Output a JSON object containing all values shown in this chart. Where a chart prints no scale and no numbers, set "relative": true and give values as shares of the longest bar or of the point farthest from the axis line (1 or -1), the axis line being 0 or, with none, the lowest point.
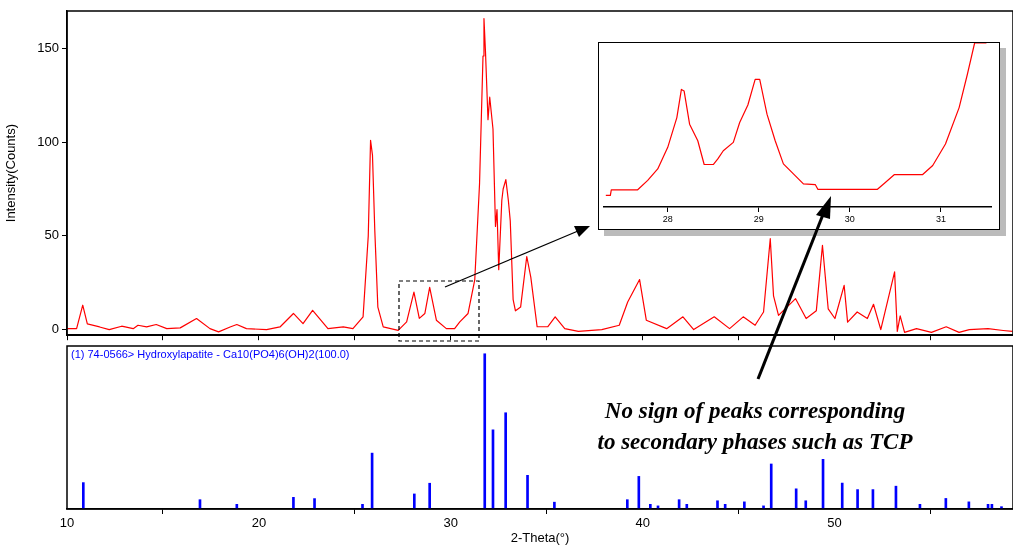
{
  "chart_data": [
    {
      "type": "line",
      "ylabel": "Intensity(Counts)",
      "xlim": [
        10,
        59.3
      ],
      "ylim": [
        -3,
        170
      ],
      "yticks": [
        0,
        50,
        100,
        150
      ],
      "tick_labels": "y",
      "grid": false,
      "marker": "none",
      "line_style": "solid",
      "x": [
        10,
        10.5,
        10.82,
        11.06,
        11.7,
        12.2,
        12.85,
        13.45,
        13.7,
        14.15,
        14.65,
        15.2,
        15.9,
        16.75,
        17.45,
        17.9,
        18.5,
        18.85,
        19.35,
        20.4,
        21.1,
        21.8,
        22.3,
        22.8,
        23.6,
        24.4,
        24.9,
        25.43,
        25.7,
        25.82,
        25.92,
        26.04,
        26.2,
        26.48,
        27.26,
        27.7,
        28.08,
        28.36,
        28.65,
        28.9,
        29.25,
        29.77,
        30.2,
        30.47,
        30.9,
        31.25,
        31.5,
        31.68,
        31.73,
        31.81,
        31.94,
        32.03,
        32.2,
        32.33,
        32.41,
        32.5,
        32.66,
        32.73,
        32.87,
        33.0,
        33.1,
        33.25,
        33.37,
        33.5,
        33.64,
        33.96,
        34.17,
        34.5,
        35.05,
        35.44,
        35.94,
        36.65,
        37.87,
        38.78,
        39.22,
        39.84,
        40.19,
        41.25,
        42.1,
        42.66,
        43.73,
        44.53,
        45.24,
        45.86,
        46.3,
        46.65,
        46.82,
        47.08,
        47.97,
        48.52,
        49.05,
        49.37,
        49.67,
        50.02,
        50.5,
        50.68,
        51.18,
        51.71,
        52.03,
        52.41,
        53.13,
        53.27,
        53.42,
        53.65,
        54.27,
        55.05,
        55.82,
        56.49,
        57.02,
        58.0,
        58.79,
        59.27
      ],
      "series": [
        {
          "color": "#ff0000",
          "values": [
            0.5,
            0.5,
            13,
            3,
            1.4,
            0,
            1.8,
            0.5,
            2.3,
            1.4,
            2.7,
            0.5,
            0.9,
            5.9,
            0.5,
            -1.2,
            1.4,
            2.7,
            0.5,
            0,
            1.4,
            8.6,
            3.2,
            10.3,
            0.5,
            1.4,
            0.5,
            6.8,
            50,
            101,
            93,
            53,
            12,
            1.4,
            -0.4,
            4.1,
            20,
            6,
            8.6,
            22.5,
            5,
            0.5,
            0.5,
            4.1,
            8.6,
            26.5,
            78,
            146,
            166,
            148,
            112,
            124,
            107,
            55,
            64,
            32,
            69,
            75,
            80,
            69,
            58,
            16,
            10,
            11,
            12,
            39,
            28,
            1.5,
            1.5,
            6.8,
            0.5,
            -1,
            0,
            2.3,
            14.7,
            26.7,
            5,
            0.5,
            6.8,
            0,
            6.8,
            0.5,
            6.8,
            2.3,
            9.4,
            48.5,
            18,
            7.6,
            16.5,
            5.9,
            10,
            45,
            11,
            5.9,
            23.6,
            4,
            9.4,
            5.9,
            13.5,
            0,
            30.8,
            -1,
            7.3,
            -1.5,
            0.5,
            -1.5,
            1.5,
            -1.5,
            0,
            0.5,
            -0.5,
            -1
          ]
        }
      ]
    },
    {
      "type": "bar",
      "relative": true,
      "xlabel": "2-Theta(°)",
      "xlim": [
        10,
        59.3
      ],
      "xticks": [
        10,
        20,
        30,
        40,
        50
      ],
      "tick_labels": "x",
      "grid": false,
      "annotations": [
        "No sign of peaks corresponding\nto secondary phases such as TCP"
      ],
      "x": [
        10.85,
        16.93,
        18.85,
        21.8,
        22.9,
        25.4,
        25.9,
        28.1,
        28.9,
        31.77,
        32.2,
        32.86,
        34.0,
        35.4,
        39.2,
        39.8,
        40.4,
        40.8,
        41.9,
        42.3,
        43.9,
        44.3,
        45.3,
        46.3,
        46.7,
        48.0,
        48.5,
        49.4,
        50.4,
        51.2,
        52.0,
        53.2,
        54.45,
        55.8,
        57.0,
        58.0,
        58.2,
        58.7
      ],
      "series": [
        {
          "name": "(1) 74-0566> Hydroxylapatite - Ca10(PO4)6(OH)2(100.0)",
          "color": "#0000ff",
          "values": [
            0.17,
            0.06,
            0.03,
            0.075,
            0.067,
            0.03,
            0.36,
            0.097,
            0.166,
            1,
            0.51,
            0.62,
            0.217,
            0.044,
            0.06,
            0.21,
            0.03,
            0.02,
            0.06,
            0.03,
            0.053,
            0.03,
            0.046,
            0.02,
            0.29,
            0.13,
            0.053,
            0.32,
            0.167,
            0.125,
            0.125,
            0.147,
            0.03,
            0.068,
            0.046,
            0.03,
            0.03,
            0.015
          ]
        }
      ]
    },
    {
      "type": "line",
      "relative": true,
      "xlim": [
        27.3,
        31.55
      ],
      "xticks": [
        28,
        29,
        30,
        31
      ],
      "tick_labels": "x",
      "grid": false,
      "marker": "none",
      "line_style": "solid",
      "x": [
        27.32,
        27.37,
        27.38,
        27.67,
        27.78,
        27.89,
        28.0,
        28.1,
        28.15,
        28.18,
        28.24,
        28.33,
        28.4,
        28.5,
        28.55,
        28.61,
        28.72,
        28.79,
        28.88,
        28.96,
        29.01,
        29.09,
        29.18,
        29.27,
        29.38,
        29.49,
        29.62,
        29.65,
        30.3,
        30.38,
        30.49,
        30.8,
        30.91,
        31.05,
        31.2,
        31.29,
        31.37,
        31.5
      ],
      "series": [
        {
          "color": "#ff0000",
          "values": [
            0.071,
            0.071,
            0.105,
            0.105,
            0.162,
            0.232,
            0.364,
            0.545,
            0.717,
            0.707,
            0.505,
            0.404,
            0.259,
            0.259,
            0.293,
            0.343,
            0.394,
            0.515,
            0.622,
            0.778,
            0.778,
            0.566,
            0.404,
            0.263,
            0.202,
            0.141,
            0.137,
            0.107,
            0.107,
            0.145,
            0.198,
            0.198,
            0.253,
            0.384,
            0.606,
            0.808,
            1,
            1
          ]
        }
      ]
    }
  ]
}
